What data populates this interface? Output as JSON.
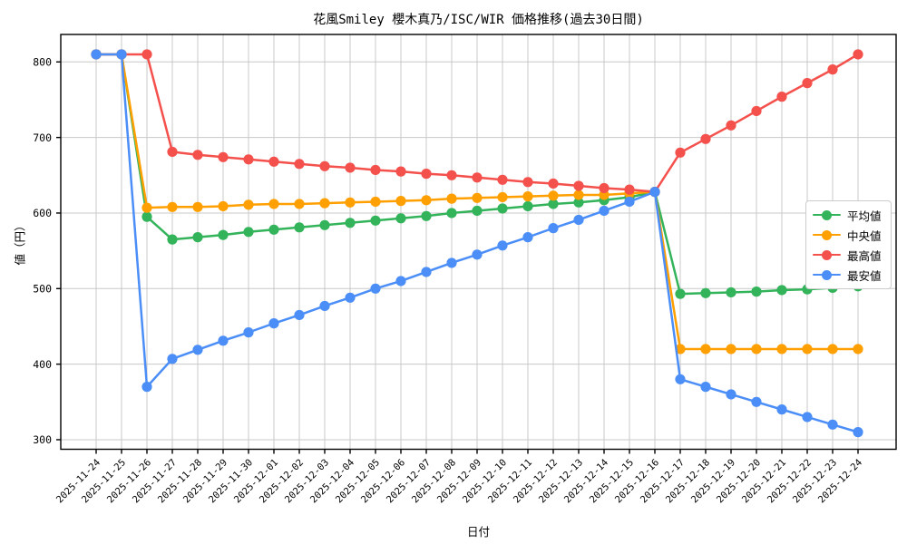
{
  "chart_data": {
    "type": "line",
    "title": "花風Smiley 櫻木真乃/ISC/WIR 価格推移(過去30日間)",
    "xlabel": "日付",
    "ylabel": "値（円）",
    "grid": true,
    "legend_position": "center right",
    "ylim": [
      287,
      836
    ],
    "yticks": [
      300,
      400,
      500,
      600,
      700,
      800
    ],
    "categories": [
      "2025-11-24",
      "2025-11-25",
      "2025-11-26",
      "2025-11-27",
      "2025-11-28",
      "2025-11-29",
      "2025-11-30",
      "2025-12-01",
      "2025-12-02",
      "2025-12-03",
      "2025-12-04",
      "2025-12-05",
      "2025-12-06",
      "2025-12-07",
      "2025-12-08",
      "2025-12-09",
      "2025-12-10",
      "2025-12-11",
      "2025-12-12",
      "2025-12-13",
      "2025-12-14",
      "2025-12-15",
      "2025-12-16",
      "2025-12-17",
      "2025-12-18",
      "2025-12-19",
      "2025-12-20",
      "2025-12-21",
      "2025-12-22",
      "2025-12-23",
      "2025-12-24"
    ],
    "series": [
      {
        "id": "average",
        "name": "平均値",
        "color": "#34b45a",
        "values": [
          810,
          810,
          595,
          565,
          568,
          571,
          575,
          578,
          581,
          584,
          587,
          590,
          593,
          596,
          600,
          603,
          606,
          609,
          612,
          614,
          617,
          621,
          628,
          493,
          494,
          495,
          496,
          498,
          499,
          501,
          503
        ]
      },
      {
        "id": "median",
        "name": "中央値",
        "color": "#ff9f00",
        "values": [
          810,
          810,
          607,
          608,
          608,
          609,
          611,
          612,
          612,
          613,
          614,
          615,
          616,
          617,
          619,
          620,
          621,
          622,
          623,
          624,
          624,
          626,
          628,
          420,
          420,
          420,
          420,
          420,
          420,
          420,
          420
        ]
      },
      {
        "id": "max",
        "name": "最高値",
        "color": "#f4504c",
        "values": [
          810,
          810,
          810,
          681,
          677,
          674,
          671,
          668,
          665,
          662,
          660,
          657,
          655,
          652,
          650,
          647,
          644,
          641,
          639,
          636,
          633,
          631,
          628,
          680,
          698,
          716,
          735,
          754,
          772,
          790,
          810
        ]
      },
      {
        "id": "min",
        "name": "最安値",
        "color": "#4b8ef7",
        "values": [
          810,
          810,
          370,
          407,
          419,
          431,
          442,
          454,
          465,
          477,
          488,
          500,
          510,
          522,
          534,
          545,
          557,
          568,
          580,
          591,
          603,
          615,
          628,
          380,
          370,
          360,
          350,
          340,
          330,
          320,
          310
        ]
      }
    ],
    "colors": {
      "background": "#ffffff",
      "grid": "#c8c8c8",
      "spine": "#000000",
      "text": "#000000",
      "legend_border": "#cccccc"
    }
  }
}
